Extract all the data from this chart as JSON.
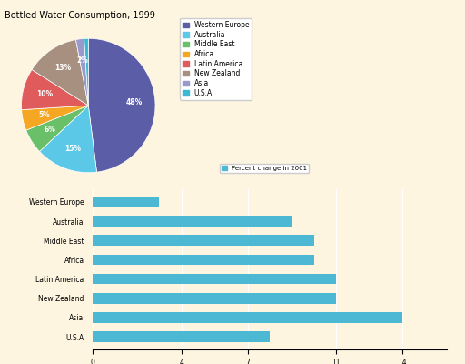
{
  "pie_title": "Bottled Water Consumption, 1999",
  "pie_labels": [
    "Western Europe",
    "Australia",
    "Middle East",
    "Africa",
    "Latin America",
    "New Zealand",
    "Asia",
    "U.S.A"
  ],
  "pie_values": [
    48,
    15,
    6,
    5,
    10,
    13,
    2,
    1
  ],
  "pie_colors": [
    "#5b5ea6",
    "#5bc8e8",
    "#6abf69",
    "#f5a623",
    "#e05c5c",
    "#a89080",
    "#9999cc",
    "#3ab8d4"
  ],
  "bar_legend_label": "Percent change in 2001",
  "bar_categories": [
    "Western Europe",
    "Australia",
    "Middle East",
    "Africa",
    "Latin America",
    "New Zealand",
    "Asia",
    "U.S.A"
  ],
  "bar_values": [
    3.0,
    9.0,
    10.0,
    10.0,
    11.0,
    11.0,
    14.0,
    8.0
  ],
  "bar_color": "#4db8d4",
  "bar_xlim": [
    0,
    16
  ],
  "bar_xticks": [
    0,
    4,
    7,
    11,
    14
  ],
  "background_color": "#fdf5e0",
  "title_fontsize": 7,
  "label_fontsize": 5.5,
  "tick_fontsize": 5.5
}
